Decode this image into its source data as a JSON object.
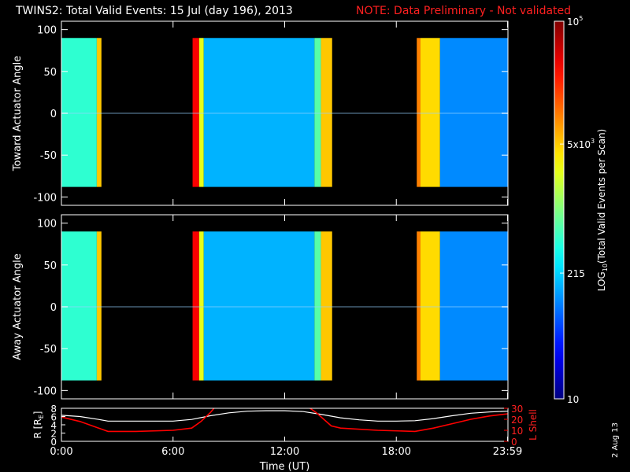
{
  "header": {
    "title": "TWINS2: Total Valid Events: 15 Jul (day 196), 2013",
    "note": "NOTE: Data Preliminary - Not validated"
  },
  "footer": {
    "date_stamp": "2 Aug 13"
  },
  "colors": {
    "note": "#ff2020",
    "lshell": "#ff0000",
    "radius": "#ffffff",
    "axes": "#ffffff",
    "background": "#000000"
  },
  "chart_data": [
    {
      "type": "heatmap",
      "ylabel": "Toward Actuator Angle",
      "xlim": [
        0,
        24
      ],
      "ylim": [
        -110,
        110
      ],
      "yticks": [
        100,
        50,
        0,
        -50,
        -100
      ],
      "ytick_labels": [
        "100",
        "50",
        "0",
        "-50",
        "-100"
      ],
      "data_angle_range": [
        -88,
        90
      ],
      "segments": [
        {
          "t0": 0.0,
          "t1": 1.9,
          "level": 0.42
        },
        {
          "t0": 1.9,
          "t1": 2.15,
          "level": 0.68
        },
        {
          "t0": 7.05,
          "t1": 7.4,
          "level": 0.88
        },
        {
          "t0": 7.4,
          "t1": 7.65,
          "level": 0.6
        },
        {
          "t0": 7.65,
          "t1": 13.6,
          "level": 0.3
        },
        {
          "t0": 13.6,
          "t1": 13.95,
          "level": 0.46
        },
        {
          "t0": 13.95,
          "t1": 14.55,
          "level": 0.68
        },
        {
          "t0": 19.1,
          "t1": 19.3,
          "level": 0.75
        },
        {
          "t0": 19.3,
          "t1": 20.35,
          "level": 0.66
        },
        {
          "t0": 20.35,
          "t1": 24.0,
          "level": 0.26
        }
      ]
    },
    {
      "type": "heatmap",
      "ylabel": "Away Actuator Angle",
      "xlim": [
        0,
        24
      ],
      "ylim": [
        -110,
        110
      ],
      "yticks": [
        100,
        50,
        0,
        -50,
        -100
      ],
      "ytick_labels": [
        "100",
        "50",
        "0",
        "-50",
        "-100"
      ],
      "data_angle_range": [
        -88,
        90
      ],
      "segments": [
        {
          "t0": 0.0,
          "t1": 1.9,
          "level": 0.42
        },
        {
          "t0": 1.9,
          "t1": 2.15,
          "level": 0.68
        },
        {
          "t0": 7.05,
          "t1": 7.4,
          "level": 0.88
        },
        {
          "t0": 7.4,
          "t1": 7.65,
          "level": 0.6
        },
        {
          "t0": 7.65,
          "t1": 13.6,
          "level": 0.3
        },
        {
          "t0": 13.6,
          "t1": 13.95,
          "level": 0.46
        },
        {
          "t0": 13.95,
          "t1": 14.55,
          "level": 0.68
        },
        {
          "t0": 19.1,
          "t1": 19.3,
          "level": 0.75
        },
        {
          "t0": 19.3,
          "t1": 20.35,
          "level": 0.66
        },
        {
          "t0": 20.35,
          "t1": 24.0,
          "level": 0.26
        }
      ]
    },
    {
      "type": "line",
      "xlabel": "Time (UT)",
      "ylabel": "R [R",
      "ylabel_sub": "E",
      "ylabel_close": "]",
      "y2label": "L Shell",
      "xlim": [
        0,
        24
      ],
      "ylim": [
        0,
        8
      ],
      "y2lim": [
        0,
        30
      ],
      "xticks": [
        0,
        6,
        12,
        18,
        23.98
      ],
      "xtick_labels": [
        "0:00",
        "6:00",
        "12:00",
        "18:00",
        "23:59"
      ],
      "yticks": [
        0,
        2,
        4,
        6,
        8
      ],
      "ytick_labels": [
        "0",
        "2",
        "4",
        "6",
        "8"
      ],
      "y2ticks": [
        0,
        10,
        20,
        30
      ],
      "y2tick_labels": [
        "0",
        "10",
        "20",
        "30"
      ],
      "series": [
        {
          "name": "R",
          "axis": "left",
          "x": [
            0,
            1,
            2,
            2.5,
            4,
            6,
            7,
            8,
            9,
            10,
            11,
            12,
            13,
            14,
            15,
            16,
            17,
            18,
            19,
            20,
            21,
            22,
            23,
            24
          ],
          "y": [
            6.3,
            6.0,
            5.3,
            4.9,
            4.9,
            4.9,
            5.3,
            6.2,
            6.9,
            7.3,
            7.4,
            7.4,
            7.2,
            6.5,
            5.7,
            5.2,
            4.9,
            4.9,
            5.0,
            5.5,
            6.2,
            6.8,
            7.1,
            7.3
          ]
        },
        {
          "name": "L Shell",
          "axis": "right",
          "x": [
            0,
            1,
            2,
            2.5,
            4,
            6,
            7,
            7.5,
            8,
            8.3,
            null,
            13.2,
            13.7,
            14.5,
            15,
            17,
            19,
            20,
            21,
            22,
            23,
            24
          ],
          "y": [
            22,
            18,
            12,
            9,
            9,
            10,
            12,
            18,
            26,
            32,
            null,
            32,
            26,
            14,
            12,
            10,
            9,
            12,
            16,
            20,
            23,
            25
          ]
        }
      ]
    }
  ],
  "colorbar": {
    "label_prefix": "LOG",
    "label_sub": "10",
    "label_suffix": "(Total Valid Events per Scan)",
    "ticks": [
      {
        "value": 100000,
        "base": "10",
        "exp": "5"
      },
      {
        "value": 5000,
        "base": "5x10",
        "exp": "3"
      },
      {
        "value": 215,
        "base": "215",
        "exp": ""
      },
      {
        "value": 10,
        "base": "10",
        "exp": ""
      }
    ],
    "range": [
      10,
      100000
    ]
  }
}
